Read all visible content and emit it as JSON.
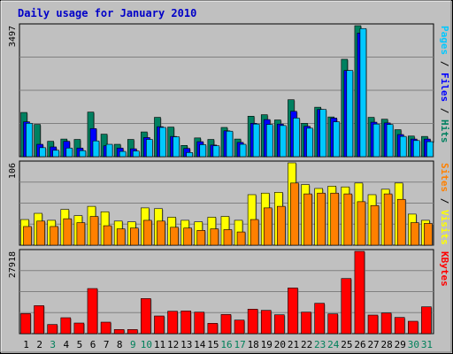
{
  "chart_data": {
    "type": "bar",
    "title": "Daily usage for January 2010",
    "categories": [
      "1",
      "2",
      "3",
      "4",
      "5",
      "6",
      "7",
      "8",
      "9",
      "10",
      "11",
      "12",
      "13",
      "14",
      "15",
      "16",
      "17",
      "18",
      "19",
      "20",
      "21",
      "22",
      "23",
      "24",
      "25",
      "26",
      "27",
      "28",
      "29",
      "30",
      "31"
    ],
    "weekend_days": [
      "3",
      "9",
      "10",
      "16",
      "17",
      "23",
      "24",
      "30",
      "31"
    ],
    "panels": [
      {
        "id": "hits",
        "max_label": "3497",
        "ymax": 3497,
        "side_label": [
          {
            "text": "Pages",
            "color": "#00c8ff"
          },
          {
            "text": " / ",
            "color": "#000000"
          },
          {
            "text": "Files",
            "color": "#0000ff"
          },
          {
            "text": " / ",
            "color": "#000000"
          },
          {
            "text": "Hits",
            "color": "#008060"
          }
        ],
        "series": [
          {
            "name": "Hits",
            "color": "#008060",
            "values": [
              1180,
              860,
              410,
              470,
              460,
              1190,
              600,
              330,
              460,
              660,
              1050,
              790,
              300,
              500,
              460,
              780,
              470,
              1080,
              1120,
              980,
              1520,
              890,
              1320,
              1060,
              2600,
              3497,
              1050,
              1000,
              720,
              550,
              540
            ]
          },
          {
            "name": "Files",
            "color": "#0000ff",
            "values": [
              930,
              330,
              260,
              410,
              230,
              750,
              290,
              230,
              210,
              510,
              800,
              540,
              220,
              400,
              310,
              690,
              380,
              890,
              990,
              870,
              1210,
              810,
              1260,
              1030,
              2300,
              3300,
              920,
              900,
              590,
              470,
              470
            ]
          },
          {
            "name": "Pages",
            "color": "#00c8ff",
            "values": [
              890,
              240,
              170,
              230,
              160,
              420,
              330,
              140,
              150,
              460,
              780,
              530,
              110,
              320,
              290,
              680,
              330,
              870,
              860,
              830,
              1030,
              760,
              1260,
              930,
              2300,
              3420,
              870,
              860,
              540,
              430,
              400
            ]
          }
        ]
      },
      {
        "id": "visits",
        "max_label": "106",
        "ymax": 106,
        "side_label": [
          {
            "text": "Sites",
            "color": "#ff8000"
          },
          {
            "text": " / ",
            "color": "#000000"
          },
          {
            "text": "Visits",
            "color": "#ffff00"
          }
        ],
        "series": [
          {
            "name": "Visits",
            "color": "#ffff00",
            "values": [
              33,
              41,
              32,
              46,
              38,
              50,
              43,
              31,
              30,
              48,
              47,
              36,
              32,
              30,
              36,
              37,
              32,
              65,
              67,
              68,
              106,
              78,
              73,
              76,
              75,
              80,
              65,
              72,
              80,
              40,
              32
            ]
          },
          {
            "name": "Sites",
            "color": "#ff8000",
            "values": [
              24,
              31,
              24,
              34,
              29,
              37,
              25,
              21,
              22,
              32,
              31,
              23,
              22,
              19,
              21,
              20,
              17,
              33,
              48,
              50,
              80,
              66,
              67,
              67,
              66,
              56,
              51,
              66,
              59,
              29,
              28
            ]
          }
        ]
      },
      {
        "id": "kbytes",
        "max_label": "27918",
        "ymax": 27918,
        "side_label": [
          {
            "text": "KBytes",
            "color": "#ff0000"
          }
        ],
        "series": [
          {
            "name": "KBytes",
            "color": "#ff0000",
            "values": [
              6800,
              9500,
              3100,
              5400,
              3600,
              15300,
              3900,
              1400,
              1400,
              11900,
              6000,
              7600,
              7700,
              7300,
              3500,
              6500,
              4600,
              8300,
              7900,
              6400,
              15500,
              7300,
              10300,
              6700,
              18700,
              27918,
              6300,
              7000,
              5500,
              4200,
              9100
            ]
          }
        ]
      }
    ]
  }
}
